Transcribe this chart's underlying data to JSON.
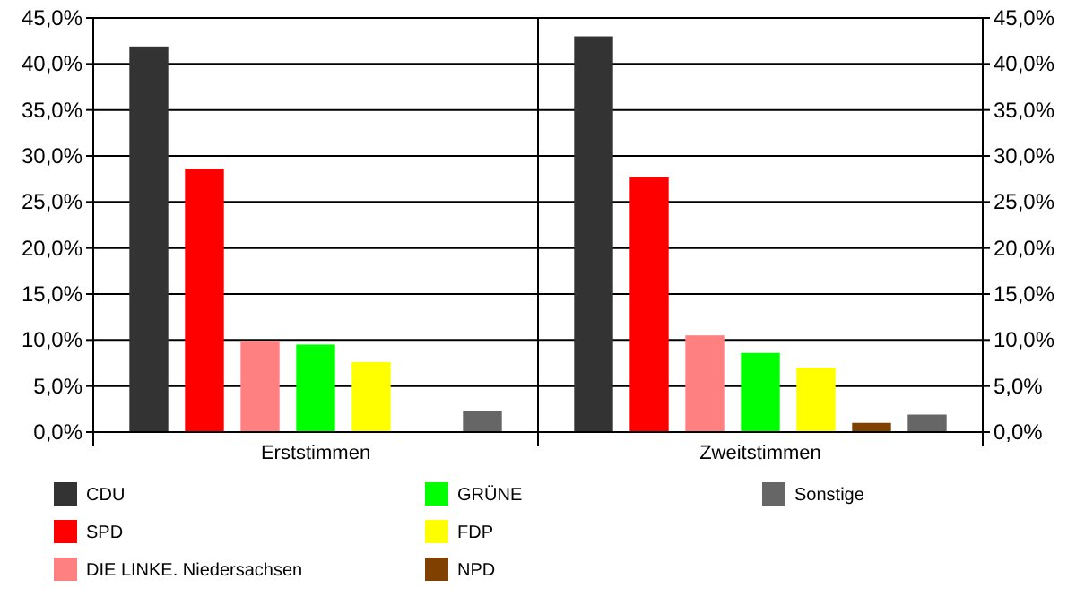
{
  "chart_data": {
    "type": "bar",
    "categories": [
      "Erststimmen",
      "Zweitstimmen"
    ],
    "series": [
      {
        "name": "CDU",
        "color": "#333333",
        "values": [
          41.9,
          43.0
        ]
      },
      {
        "name": "SPD",
        "color": "#ff0000",
        "values": [
          28.6,
          27.7
        ]
      },
      {
        "name": "DIE LINKE. Niedersachsen",
        "color": "#ff8080",
        "values": [
          9.9,
          10.5
        ]
      },
      {
        "name": "GRÜNE",
        "color": "#00ff00",
        "values": [
          9.5,
          8.6
        ]
      },
      {
        "name": "FDP",
        "color": "#ffff00",
        "values": [
          7.6,
          7.0
        ]
      },
      {
        "name": "NPD",
        "color": "#804000",
        "values": [
          null,
          1.0
        ]
      },
      {
        "name": "Sonstige",
        "color": "#666666",
        "values": [
          2.3,
          1.9
        ]
      }
    ],
    "ylim": [
      0,
      45
    ],
    "yticks": [
      {
        "value": 0,
        "label": "0,0%"
      },
      {
        "value": 5,
        "label": "5,0%"
      },
      {
        "value": 10,
        "label": "10,0%"
      },
      {
        "value": 15,
        "label": "15,0%"
      },
      {
        "value": 20,
        "label": "20,0%"
      },
      {
        "value": 25,
        "label": "25,0%"
      },
      {
        "value": 30,
        "label": "30,0%"
      },
      {
        "value": 35,
        "label": "35,0%"
      },
      {
        "value": 40,
        "label": "40,0%"
      },
      {
        "value": 45,
        "label": "45,0%"
      }
    ],
    "y2lim": [
      0,
      45
    ],
    "y2ticks": [
      {
        "value": 0,
        "label": "0,0%"
      },
      {
        "value": 5,
        "label": "5,0%"
      },
      {
        "value": 10,
        "label": "10,0%"
      },
      {
        "value": 15,
        "label": "15,0%"
      },
      {
        "value": 20,
        "label": "20,0%"
      },
      {
        "value": 25,
        "label": "25,0%"
      },
      {
        "value": 30,
        "label": "30,0%"
      },
      {
        "value": 35,
        "label": "35,0%"
      },
      {
        "value": 40,
        "label": "40,0%"
      },
      {
        "value": 45,
        "label": "45,0%"
      }
    ],
    "grid": "y",
    "legend": "bottom"
  }
}
